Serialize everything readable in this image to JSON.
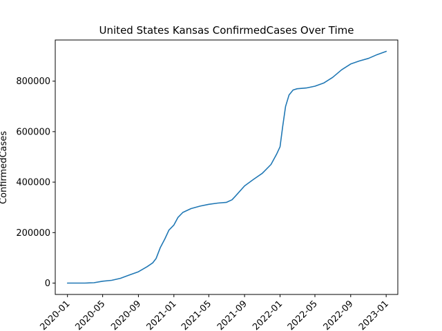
{
  "chart_data": {
    "type": "line",
    "title": "United States Kansas ConfirmedCases Over Time",
    "xlabel": "",
    "ylabel": "ConfirmedCases",
    "xlim": [
      "2019-11-20",
      "2023-02-10"
    ],
    "ylim": [
      -45000,
      963000
    ],
    "grid": false,
    "legend": "none",
    "x_ticks": [
      "2020-01",
      "2020-05",
      "2020-09",
      "2021-01",
      "2021-05",
      "2021-09",
      "2022-01",
      "2022-05",
      "2022-09",
      "2023-01"
    ],
    "y_ticks": [
      0,
      200000,
      400000,
      600000,
      800000
    ],
    "y_tick_labels": [
      "0",
      "200000",
      "400000",
      "600000",
      "800000"
    ],
    "series": [
      {
        "name": "",
        "color": "#1f77b4",
        "points": [
          [
            "2020-01-01",
            0
          ],
          [
            "2020-03-01",
            0
          ],
          [
            "2020-04-01",
            1500
          ],
          [
            "2020-05-01",
            7500
          ],
          [
            "2020-06-01",
            11000
          ],
          [
            "2020-07-01",
            19000
          ],
          [
            "2020-08-01",
            32000
          ],
          [
            "2020-09-01",
            45000
          ],
          [
            "2020-10-01",
            65000
          ],
          [
            "2020-10-20",
            80000
          ],
          [
            "2020-11-01",
            98000
          ],
          [
            "2020-11-15",
            140000
          ],
          [
            "2020-12-01",
            175000
          ],
          [
            "2020-12-15",
            210000
          ],
          [
            "2021-01-01",
            230000
          ],
          [
            "2021-01-15",
            260000
          ],
          [
            "2021-02-01",
            280000
          ],
          [
            "2021-03-01",
            295000
          ],
          [
            "2021-04-01",
            305000
          ],
          [
            "2021-05-01",
            312000
          ],
          [
            "2021-06-01",
            317000
          ],
          [
            "2021-07-01",
            320000
          ],
          [
            "2021-07-20",
            330000
          ],
          [
            "2021-08-01",
            345000
          ],
          [
            "2021-09-01",
            385000
          ],
          [
            "2021-10-01",
            410000
          ],
          [
            "2021-11-01",
            435000
          ],
          [
            "2021-12-01",
            470000
          ],
          [
            "2021-12-20",
            510000
          ],
          [
            "2022-01-01",
            540000
          ],
          [
            "2022-01-10",
            620000
          ],
          [
            "2022-01-20",
            700000
          ],
          [
            "2022-02-01",
            745000
          ],
          [
            "2022-02-15",
            765000
          ],
          [
            "2022-03-01",
            770000
          ],
          [
            "2022-04-01",
            773000
          ],
          [
            "2022-05-01",
            780000
          ],
          [
            "2022-06-01",
            793000
          ],
          [
            "2022-07-01",
            815000
          ],
          [
            "2022-08-01",
            845000
          ],
          [
            "2022-09-01",
            868000
          ],
          [
            "2022-10-01",
            880000
          ],
          [
            "2022-11-01",
            890000
          ],
          [
            "2022-12-01",
            905000
          ],
          [
            "2023-01-01",
            918000
          ]
        ]
      }
    ]
  }
}
